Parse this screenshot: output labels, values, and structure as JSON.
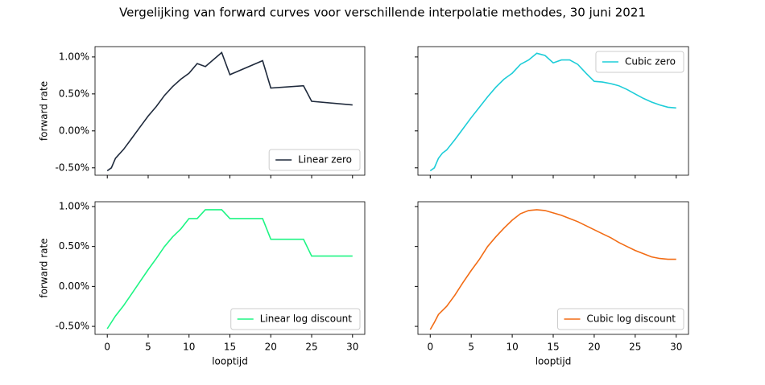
{
  "title": "Vergelijking van forward curves voor verschillende interpolatie methodes, 30 juni 2021",
  "chart_data": [
    {
      "type": "line",
      "ylabel": "forward rate",
      "legend": "lower right",
      "xlim": [
        -1.5,
        31.5
      ],
      "ylim": [
        -0.6,
        1.14
      ],
      "xticks": [
        0,
        5,
        10,
        15,
        20,
        25,
        30
      ],
      "show_xtick_labels": false,
      "show_ytick_labels": true,
      "yticks": [
        {
          "value": -0.5,
          "label": "-0.50%"
        },
        {
          "value": 0,
          "label": "0.00%"
        },
        {
          "value": 0.5,
          "label": "0.50%"
        },
        {
          "value": 1.0,
          "label": "1.00%"
        }
      ],
      "x": [
        0,
        0.5,
        1,
        2,
        3,
        4,
        5,
        6,
        7,
        8,
        9,
        10,
        11,
        12,
        14,
        15,
        19,
        20,
        24,
        25,
        30
      ],
      "series": [
        {
          "name": "Linear zero",
          "color": "#1f2a3c",
          "values": [
            -0.54,
            -0.5,
            -0.37,
            -0.25,
            -0.1,
            0.05,
            0.2,
            0.33,
            0.48,
            0.6,
            0.7,
            0.78,
            0.91,
            0.87,
            1.06,
            0.76,
            0.95,
            0.58,
            0.61,
            0.4,
            0.35
          ]
        }
      ]
    },
    {
      "type": "line",
      "legend": "upper right",
      "xlim": [
        -1.5,
        31.5
      ],
      "ylim": [
        -0.6,
        1.14
      ],
      "xticks": [
        0,
        5,
        10,
        15,
        20,
        25,
        30
      ],
      "show_xtick_labels": false,
      "show_ytick_labels": false,
      "yticks": [
        -0.5,
        0,
        0.5,
        1.0
      ],
      "x": [
        0,
        0.5,
        1,
        1.5,
        2,
        3,
        4,
        5,
        6,
        7,
        8,
        9,
        10,
        11,
        12,
        13,
        14,
        15,
        16,
        17,
        18,
        19,
        20,
        21,
        22,
        23,
        24,
        25,
        26,
        27,
        28,
        29,
        30
      ],
      "series": [
        {
          "name": "Cubic zero",
          "color": "#1dcdd8",
          "values": [
            -0.54,
            -0.5,
            -0.37,
            -0.3,
            -0.26,
            -0.12,
            0.03,
            0.18,
            0.32,
            0.46,
            0.59,
            0.7,
            0.78,
            0.9,
            0.96,
            1.05,
            1.02,
            0.92,
            0.96,
            0.96,
            0.9,
            0.78,
            0.67,
            0.66,
            0.64,
            0.61,
            0.56,
            0.5,
            0.44,
            0.39,
            0.35,
            0.32,
            0.31
          ]
        }
      ]
    },
    {
      "type": "line",
      "ylabel": "forward rate",
      "xlabel": "looptijd",
      "legend": "lower right",
      "xlim": [
        -1.5,
        31.5
      ],
      "ylim": [
        -0.6,
        1.06
      ],
      "xticks": [
        0,
        5,
        10,
        15,
        20,
        25,
        30
      ],
      "show_xtick_labels": true,
      "show_ytick_labels": true,
      "yticks": [
        {
          "value": -0.5,
          "label": "-0.50%"
        },
        {
          "value": 0,
          "label": "0.00%"
        },
        {
          "value": 0.5,
          "label": "0.50%"
        },
        {
          "value": 1.0,
          "label": "1.00%"
        }
      ],
      "x": [
        0,
        1,
        2,
        3,
        4,
        5,
        6,
        7,
        8,
        9,
        10,
        11,
        12,
        14,
        15,
        19,
        20,
        24,
        25,
        30
      ],
      "series": [
        {
          "name": "Linear log discount",
          "color": "#1ef584",
          "values": [
            -0.53,
            -0.37,
            -0.24,
            -0.09,
            0.06,
            0.21,
            0.35,
            0.5,
            0.62,
            0.72,
            0.85,
            0.85,
            0.96,
            0.96,
            0.85,
            0.85,
            0.59,
            0.59,
            0.38,
            0.38
          ]
        }
      ]
    },
    {
      "type": "line",
      "xlabel": "looptijd",
      "legend": "lower right",
      "xlim": [
        -1.5,
        31.5
      ],
      "ylim": [
        -0.6,
        1.06
      ],
      "xticks": [
        0,
        5,
        10,
        15,
        20,
        25,
        30
      ],
      "show_xtick_labels": true,
      "show_ytick_labels": false,
      "yticks": [
        -0.5,
        0,
        0.5,
        1.0
      ],
      "x": [
        0,
        0.5,
        1,
        2,
        3,
        4,
        5,
        6,
        7,
        8,
        9,
        10,
        11,
        12,
        13,
        14,
        15,
        16,
        17,
        18,
        19,
        20,
        21,
        22,
        23,
        24,
        25,
        26,
        27,
        28,
        29,
        30
      ],
      "series": [
        {
          "name": "Cubic log discount",
          "color": "#f26c15",
          "values": [
            -0.54,
            -0.45,
            -0.35,
            -0.25,
            -0.11,
            0.05,
            0.2,
            0.34,
            0.5,
            0.62,
            0.73,
            0.83,
            0.91,
            0.95,
            0.96,
            0.95,
            0.92,
            0.89,
            0.85,
            0.81,
            0.76,
            0.71,
            0.66,
            0.61,
            0.55,
            0.5,
            0.45,
            0.41,
            0.37,
            0.35,
            0.34,
            0.34
          ]
        }
      ]
    }
  ]
}
